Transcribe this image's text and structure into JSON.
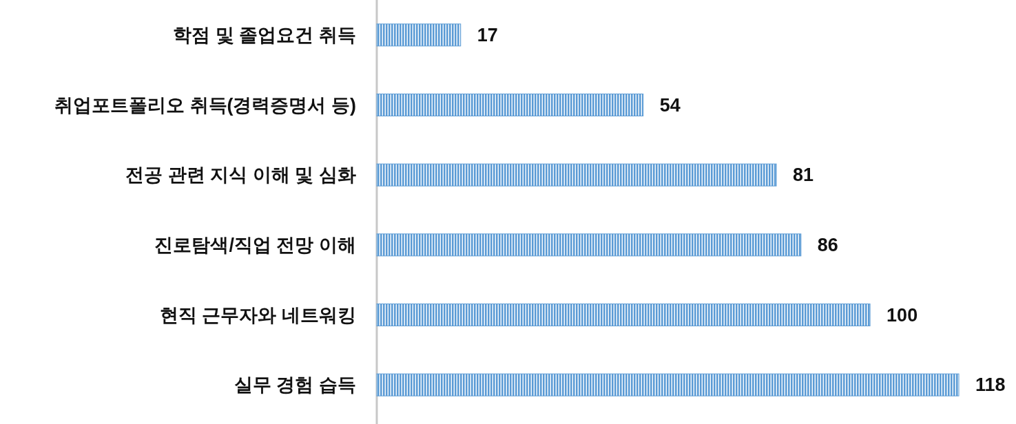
{
  "chart_data": {
    "type": "bar",
    "orientation": "horizontal",
    "categories": [
      "학점 및 졸업요건 취득",
      "취업포트폴리오 취득(경력증명서 등)",
      "전공 관련 지식 이해 및 심화",
      "진로탐색/직업 전망 이해",
      "현직 근무자와 네트워킹",
      "실무 경험 습득"
    ],
    "values": [
      17,
      54,
      81,
      86,
      100,
      118
    ],
    "color": "#5b9bd5",
    "data_labels": true
  }
}
